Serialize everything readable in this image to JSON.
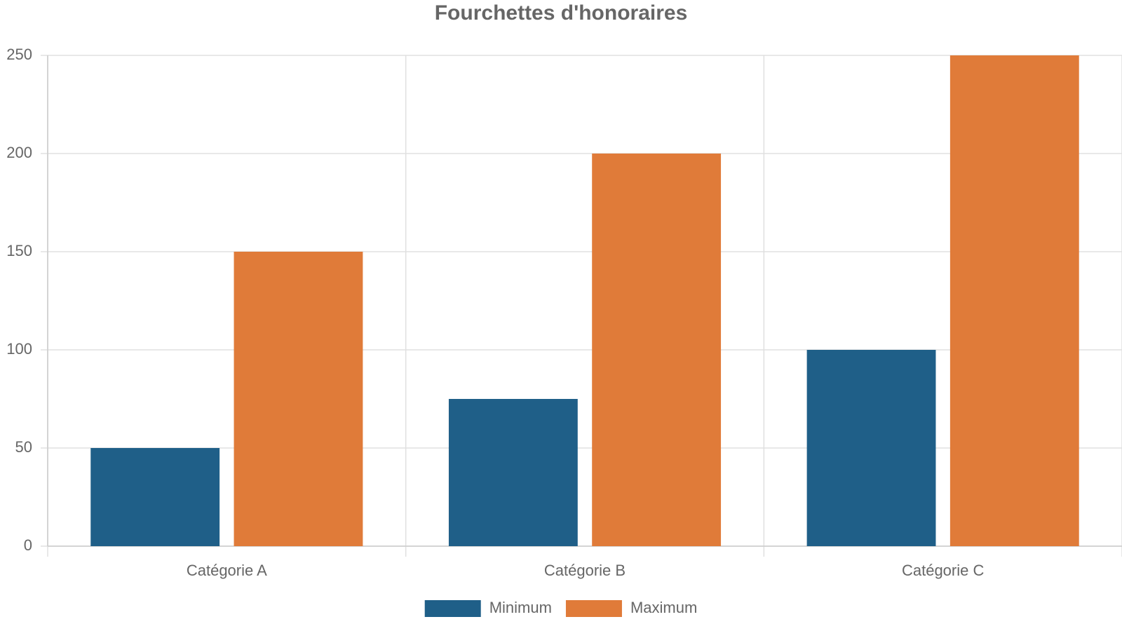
{
  "chart_data": {
    "type": "bar",
    "title": "Fourchettes d'honoraires",
    "categories": [
      "Catégorie A",
      "Catégorie B",
      "Catégorie C"
    ],
    "series": [
      {
        "name": "Minimum",
        "color": "#1f5f88",
        "values": [
          50,
          75,
          100
        ]
      },
      {
        "name": "Maximum",
        "color": "#e07b39",
        "values": [
          150,
          200,
          250
        ]
      }
    ],
    "ylim": [
      0,
      250
    ],
    "yticks": [
      0,
      50,
      100,
      150,
      200,
      250
    ],
    "grid": true,
    "legend": "bottom"
  }
}
